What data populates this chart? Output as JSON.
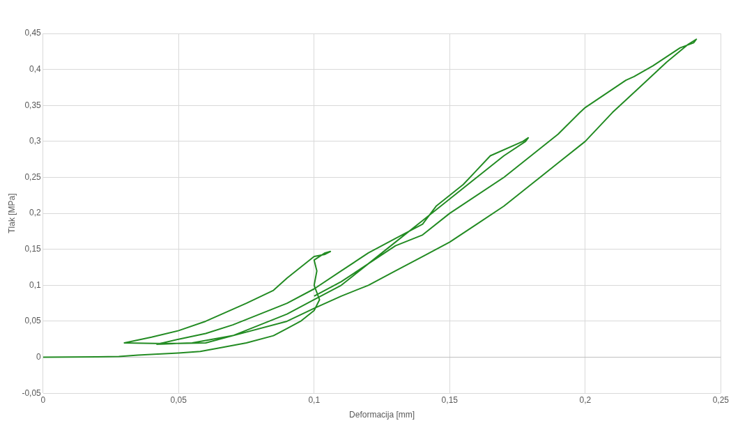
{
  "chart_data": {
    "type": "line",
    "xlabel": "Deformacija [mm]",
    "ylabel": "Tlak [MPa]",
    "x": [
      0,
      0.02,
      0.028,
      0.035,
      0.05,
      0.058,
      0.065,
      0.075,
      0.085,
      0.09,
      0.095,
      0.1,
      0.102,
      0.1,
      0.101,
      0.1,
      0.104,
      0.106,
      0.104,
      0.1,
      0.095,
      0.09,
      0.085,
      0.075,
      0.06,
      0.05,
      0.04,
      0.03,
      0.045,
      0.06,
      0.07,
      0.08,
      0.09,
      0.1,
      0.11,
      0.12,
      0.13,
      0.14,
      0.15,
      0.16,
      0.17,
      0.178,
      0.179,
      0.177,
      0.165,
      0.16,
      0.155,
      0.145,
      0.14,
      0.13,
      0.12,
      0.11,
      0.1,
      0.09,
      0.08,
      0.07,
      0.06,
      0.05,
      0.042,
      0.055,
      0.07,
      0.09,
      0.1,
      0.11,
      0.12,
      0.13,
      0.14,
      0.15,
      0.16,
      0.17,
      0.18,
      0.19,
      0.2,
      0.21,
      0.22,
      0.23,
      0.238,
      0.241,
      0.24,
      0.235,
      0.225,
      0.218,
      0.215,
      0.2,
      0.198,
      0.19,
      0.18,
      0.17,
      0.15,
      0.14,
      0.13,
      0.12,
      0.11,
      0.1
    ],
    "values": [
      0,
      0.0005,
      0.001,
      0.003,
      0.006,
      0.008,
      0.013,
      0.02,
      0.03,
      0.04,
      0.05,
      0.065,
      0.08,
      0.1,
      0.12,
      0.135,
      0.145,
      0.147,
      0.143,
      0.14,
      0.125,
      0.11,
      0.093,
      0.075,
      0.05,
      0.037,
      0.028,
      0.02,
      0.019,
      0.02,
      0.03,
      0.045,
      0.06,
      0.08,
      0.1,
      0.13,
      0.16,
      0.19,
      0.22,
      0.25,
      0.28,
      0.3,
      0.305,
      0.3,
      0.28,
      0.26,
      0.24,
      0.21,
      0.185,
      0.165,
      0.145,
      0.12,
      0.095,
      0.075,
      0.06,
      0.045,
      0.033,
      0.025,
      0.018,
      0.02,
      0.03,
      0.05,
      0.068,
      0.085,
      0.1,
      0.12,
      0.14,
      0.16,
      0.185,
      0.21,
      0.24,
      0.27,
      0.3,
      0.34,
      0.375,
      0.41,
      0.435,
      0.442,
      0.437,
      0.43,
      0.405,
      0.39,
      0.385,
      0.347,
      0.34,
      0.31,
      0.28,
      0.25,
      0.2,
      0.17,
      0.155,
      0.13,
      0.105,
      0.085
    ],
    "color": "#228b22",
    "xlim": [
      0,
      0.25
    ],
    "xticks": [
      0,
      {
        "value": 0.05,
        "label": "0,05"
      },
      {
        "value": 0.1,
        "label": "0,1"
      },
      {
        "value": 0.15,
        "label": "0,15"
      },
      {
        "value": 0.2,
        "label": "0,2"
      },
      {
        "value": 0.25,
        "label": "0,25"
      }
    ],
    "ylim": [
      -0.05,
      0.45
    ],
    "yticks": [
      {
        "value": -0.05,
        "label": "-0,05"
      },
      0,
      {
        "value": 0.05,
        "label": "0,05"
      },
      {
        "value": 0.1,
        "label": "0,1"
      },
      {
        "value": 0.15,
        "label": "0,15"
      },
      {
        "value": 0.2,
        "label": "0,2"
      },
      {
        "value": 0.25,
        "label": "0,25"
      },
      {
        "value": 0.3,
        "label": "0,3"
      },
      {
        "value": 0.35,
        "label": "0,35"
      },
      {
        "value": 0.4,
        "label": "0,4"
      },
      {
        "value": 0.45,
        "label": "0,45"
      }
    ],
    "grid": true,
    "marker": "none",
    "line_style": "solid"
  }
}
